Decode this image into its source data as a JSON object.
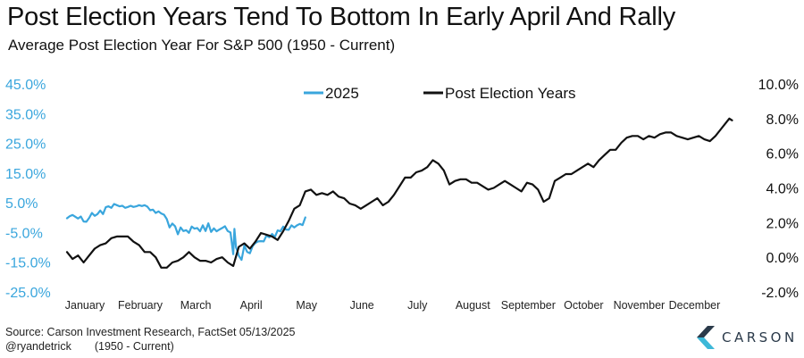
{
  "title": "Post Election Years Tend To Bottom In Early April And Rally",
  "subtitle": "Average Post Election Year For S&P 500 (1950 - Current)",
  "footer": {
    "source": "Source: Carson Investment Research, FactSet 05/13/2025",
    "handle": "@ryandetrick",
    "range": "(1950 - Current)"
  },
  "brand": {
    "name": "CARSON",
    "icon": "carson-chevron-logo-icon",
    "color": "#2b3a4a",
    "accent": "#3db8d8"
  },
  "chart_data": {
    "type": "line",
    "x_labels": [
      "January",
      "February",
      "March",
      "April",
      "May",
      "June",
      "July",
      "August",
      "September",
      "October",
      "November",
      "December"
    ],
    "legend_position": "top-center",
    "grid": false,
    "left_axis": {
      "ticks": [
        "45.0%",
        "35.0%",
        "25.0%",
        "15.0%",
        "5.0%",
        "-5.0%",
        "-15.0%",
        "-25.0%"
      ],
      "range": [
        -25,
        45
      ],
      "color": "#3aa6dd"
    },
    "right_axis": {
      "ticks": [
        "10.0%",
        "8.0%",
        "6.0%",
        "4.0%",
        "2.0%",
        "0.0%",
        "-2.0%"
      ],
      "range": [
        -2,
        10
      ],
      "color": "#111111"
    },
    "series": [
      {
        "name": "2025",
        "axis": "left",
        "color": "#3aa6dd",
        "x": [
          0,
          0.05,
          0.1,
          0.15,
          0.2,
          0.25,
          0.3,
          0.35,
          0.4,
          0.45,
          0.5,
          0.55,
          0.6,
          0.65,
          0.7,
          0.75,
          0.8,
          0.85,
          0.9,
          0.95,
          1.0,
          1.05,
          1.1,
          1.15,
          1.2,
          1.25,
          1.3,
          1.35,
          1.4,
          1.45,
          1.5,
          1.55,
          1.6,
          1.65,
          1.7,
          1.75,
          1.8,
          1.85,
          1.9,
          1.95,
          2.0,
          2.05,
          2.1,
          2.15,
          2.2,
          2.25,
          2.3,
          2.35,
          2.4,
          2.45,
          2.5,
          2.55,
          2.6,
          2.65,
          2.7,
          2.75,
          2.8,
          2.85,
          2.9,
          2.95,
          3.0,
          3.02,
          3.05,
          3.08,
          3.1,
          3.15,
          3.2,
          3.25,
          3.3,
          3.35,
          3.4,
          3.45,
          3.5,
          3.55,
          3.6,
          3.65,
          3.7,
          3.75,
          3.8,
          3.85,
          3.9,
          3.95,
          4.0,
          4.05,
          4.1,
          4.15,
          4.2,
          4.25,
          4.3
        ],
        "y": [
          -0.2,
          0.5,
          0.9,
          0.3,
          -0.3,
          0.4,
          -1.3,
          -1.4,
          -0.1,
          1.6,
          0.6,
          1.2,
          2.4,
          1.2,
          3.5,
          3.8,
          3.3,
          4.6,
          4.2,
          3.8,
          4.0,
          3.3,
          3.6,
          4.0,
          3.6,
          3.8,
          4.2,
          3.9,
          4.2,
          3.7,
          2.5,
          2.7,
          1.6,
          2.1,
          1.4,
          1.0,
          -0.5,
          -3.3,
          -2.0,
          -2.9,
          -5.6,
          -3.3,
          -4.5,
          -4.2,
          -5.1,
          -3.0,
          -3.7,
          -3.5,
          -4.6,
          -2.6,
          -4.5,
          -1.9,
          -4.8,
          -3.6,
          -4.6,
          -4.0,
          -3.5,
          -2.9,
          -4.5,
          -5.0,
          -12.3,
          -3.8,
          -10.0,
          -11.5,
          -12.8,
          -14.2,
          -9.4,
          -11.5,
          -12.0,
          -9.6,
          -8.5,
          -8.0,
          -7.9,
          -8.0,
          -6.0,
          -6.6,
          -5.5,
          -6.5,
          -4.3,
          -4.6,
          -3.0,
          -4.0,
          -4.1,
          -2.6,
          -3.3,
          -2.6,
          -2.1,
          -2.5,
          0.1
        ]
      },
      {
        "name": "Post Election Years",
        "axis": "right",
        "color": "#111111",
        "x": [
          0,
          0.1,
          0.2,
          0.3,
          0.4,
          0.5,
          0.6,
          0.7,
          0.8,
          0.9,
          1.0,
          1.1,
          1.2,
          1.3,
          1.4,
          1.5,
          1.6,
          1.7,
          1.8,
          1.9,
          2.0,
          2.1,
          2.2,
          2.3,
          2.4,
          2.5,
          2.6,
          2.7,
          2.8,
          2.9,
          3.0,
          3.1,
          3.2,
          3.3,
          3.4,
          3.5,
          3.6,
          3.7,
          3.8,
          3.9,
          4.0,
          4.1,
          4.2,
          4.3,
          4.4,
          4.5,
          4.6,
          4.7,
          4.8,
          4.9,
          5.0,
          5.1,
          5.2,
          5.3,
          5.4,
          5.5,
          5.6,
          5.7,
          5.8,
          5.9,
          6.0,
          6.1,
          6.2,
          6.3,
          6.4,
          6.5,
          6.6,
          6.7,
          6.8,
          6.9,
          7.0,
          7.1,
          7.2,
          7.3,
          7.4,
          7.5,
          7.6,
          7.7,
          7.8,
          7.9,
          8.0,
          8.1,
          8.2,
          8.3,
          8.4,
          8.5,
          8.6,
          8.7,
          8.8,
          8.9,
          9.0,
          9.1,
          9.2,
          9.3,
          9.4,
          9.5,
          9.6,
          9.7,
          9.8,
          9.9,
          10.0,
          10.1,
          10.2,
          10.3,
          10.4,
          10.5,
          10.6,
          10.7,
          10.8,
          10.9,
          11.0,
          11.1,
          11.2,
          11.3,
          11.4,
          11.5,
          11.6,
          11.7,
          11.8,
          11.9,
          11.95,
          12.0
        ],
        "y": [
          0.3,
          -0.1,
          0.1,
          -0.3,
          0.1,
          0.5,
          0.7,
          0.8,
          1.1,
          1.2,
          1.2,
          1.2,
          0.9,
          0.7,
          0.3,
          0.3,
          0.0,
          -0.6,
          -0.6,
          -0.3,
          -0.2,
          0.0,
          0.3,
          0.0,
          -0.2,
          -0.2,
          -0.3,
          -0.1,
          0.0,
          -0.3,
          -0.5,
          0.6,
          0.8,
          0.5,
          0.9,
          1.4,
          1.3,
          1.2,
          1.0,
          1.5,
          2.1,
          2.8,
          3.0,
          3.8,
          3.9,
          3.6,
          3.7,
          3.6,
          3.8,
          3.5,
          3.4,
          3.1,
          3.0,
          2.8,
          3.0,
          3.2,
          3.4,
          3.0,
          3.2,
          3.6,
          4.1,
          4.6,
          4.6,
          4.9,
          5.0,
          5.2,
          5.6,
          5.4,
          5.0,
          4.2,
          4.4,
          4.5,
          4.5,
          4.3,
          4.3,
          4.1,
          3.9,
          4.0,
          4.2,
          4.4,
          4.2,
          4.0,
          3.8,
          4.3,
          4.2,
          3.9,
          3.2,
          3.4,
          4.4,
          4.6,
          4.8,
          4.8,
          5.0,
          5.2,
          5.4,
          5.2,
          5.6,
          5.9,
          6.2,
          6.2,
          6.6,
          6.9,
          7.0,
          7.0,
          6.8,
          7.0,
          6.9,
          7.1,
          7.2,
          7.2,
          7.0,
          6.9,
          6.8,
          6.9,
          7.0,
          6.8,
          6.7,
          7.0,
          7.4,
          7.8,
          8.0,
          7.9
        ]
      }
    ]
  }
}
